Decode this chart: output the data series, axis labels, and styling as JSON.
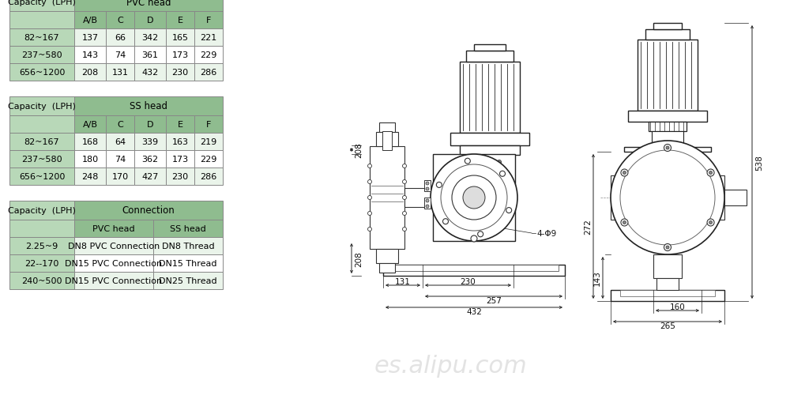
{
  "bg_color": "#ffffff",
  "table_header_color": "#8fbc8f",
  "table_subheader_color": "#b8d8b8",
  "table_row_even": "#eaf4ea",
  "table_row_odd": "#ffffff",
  "table_border_color": "#888888",
  "pvc_table": {
    "title": "PVC head",
    "capacity_label": "Capacity  (LPH)",
    "col_headers": [
      "A/B",
      "C",
      "D",
      "E",
      "F"
    ],
    "rows": [
      [
        "82~167",
        "137",
        "66",
        "342",
        "165",
        "221"
      ],
      [
        "237~580",
        "143",
        "74",
        "361",
        "173",
        "229"
      ],
      [
        "656~1200",
        "208",
        "131",
        "432",
        "230",
        "286"
      ]
    ]
  },
  "ss_table": {
    "title": "SS head",
    "capacity_label": "Capacity  (LPH)",
    "col_headers": [
      "A/B",
      "C",
      "D",
      "E",
      "F"
    ],
    "rows": [
      [
        "82~167",
        "168",
        "64",
        "339",
        "163",
        "219"
      ],
      [
        "237~580",
        "180",
        "74",
        "362",
        "173",
        "229"
      ],
      [
        "656~1200",
        "248",
        "170",
        "427",
        "230",
        "286"
      ]
    ]
  },
  "conn_table": {
    "title": "Connection",
    "capacity_label": "Capacity  (LPH)",
    "col_headers": [
      "PVC head",
      "SS head"
    ],
    "rows": [
      [
        "2.25~9",
        "DN8 PVC Connection",
        "DN8 Thread"
      ],
      [
        "22--170",
        "DN15 PVC Connection",
        "DN15 Thread"
      ],
      [
        "240~500",
        "DN15 PVC Connection",
        "DN25 Thread"
      ]
    ]
  },
  "watermark": "es.alipu.com",
  "front_dims": {
    "208_top": "208",
    "208_bot": "208",
    "131": "131",
    "230": "230",
    "257": "257",
    "432": "432",
    "bolt": "4-Φ9"
  },
  "side_dims": {
    "538": "538",
    "272": "272",
    "143": "143",
    "160": "160",
    "265": "265"
  }
}
